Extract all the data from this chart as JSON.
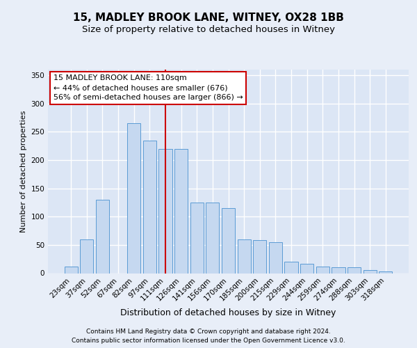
{
  "title1": "15, MADLEY BROOK LANE, WITNEY, OX28 1BB",
  "title2": "Size of property relative to detached houses in Witney",
  "xlabel": "Distribution of detached houses by size in Witney",
  "ylabel": "Number of detached properties",
  "categories": [
    "23sqm",
    "37sqm",
    "52sqm",
    "67sqm",
    "82sqm",
    "97sqm",
    "111sqm",
    "126sqm",
    "141sqm",
    "156sqm",
    "170sqm",
    "185sqm",
    "200sqm",
    "215sqm",
    "229sqm",
    "244sqm",
    "259sqm",
    "274sqm",
    "288sqm",
    "303sqm",
    "318sqm"
  ],
  "values": [
    12,
    60,
    130,
    0,
    265,
    235,
    220,
    220,
    125,
    125,
    115,
    60,
    58,
    55,
    20,
    17,
    12,
    10,
    11,
    5,
    3
  ],
  "bar_color": "#c5d8f0",
  "bar_edge_color": "#5b9bd5",
  "vline_index": 6,
  "marker_label": "15 MADLEY BROOK LANE: 110sqm",
  "annotation_line1": "← 44% of detached houses are smaller (676)",
  "annotation_line2": "56% of semi-detached houses are larger (866) →",
  "vline_color": "#cc0000",
  "ylim": [
    0,
    360
  ],
  "yticks": [
    0,
    50,
    100,
    150,
    200,
    250,
    300,
    350
  ],
  "footer1": "Contains HM Land Registry data © Crown copyright and database right 2024.",
  "footer2": "Contains public sector information licensed under the Open Government Licence v3.0.",
  "fig_facecolor": "#e8eef8",
  "axes_facecolor": "#dce6f5",
  "grid_color": "#ffffff",
  "title1_fontsize": 11,
  "title2_fontsize": 9.5,
  "xlabel_fontsize": 9,
  "ylabel_fontsize": 8,
  "tick_fontsize": 7.5,
  "footer_fontsize": 6.5,
  "ann_fontsize": 8
}
